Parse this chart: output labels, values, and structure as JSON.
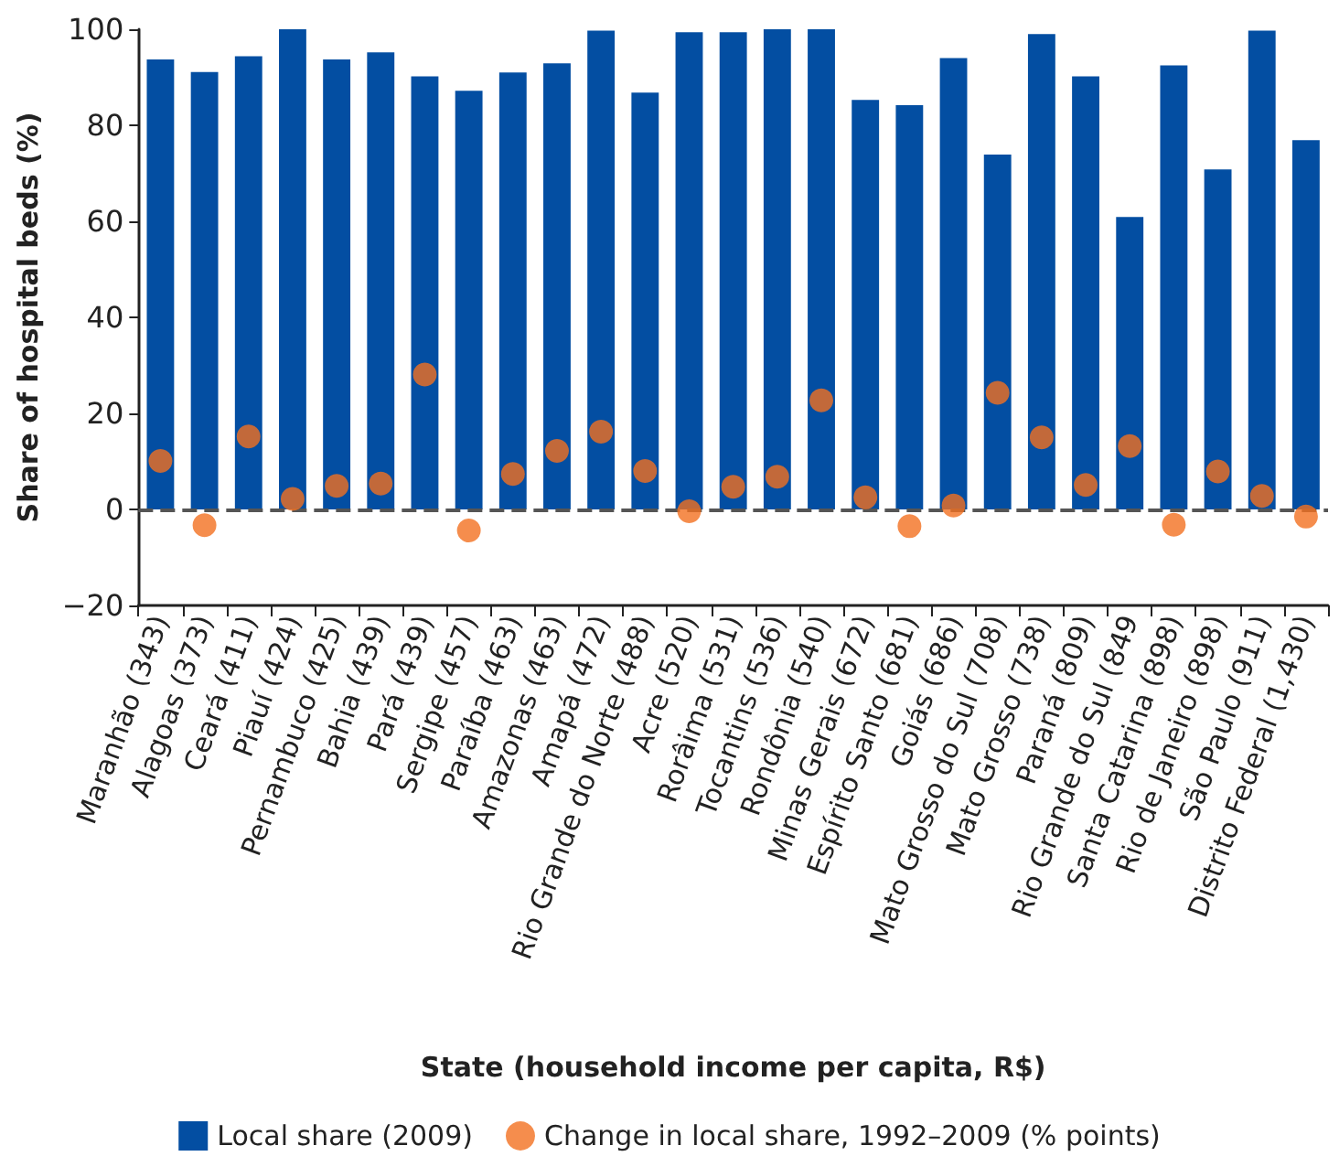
{
  "chart_data": {
    "type": "bar",
    "xlabel": "State (household income per capita, R$)",
    "ylabel": "Share of hospital beds (%)",
    "categories": [
      "Maranhão (343)",
      "Alagoas (373)",
      "Ceará (411)",
      "Piauí (424)",
      "Pernambuco (425)",
      "Bahia (439)",
      "Pará (439)",
      "Sergipe (457)",
      "Paraíba (463)",
      "Amazonas (463)",
      "Amapá (472)",
      "Rio Grande do Norte (488)",
      "Acre (520)",
      "Rorâima (531)",
      "Tocantins (536)",
      "Rondônia (540)",
      "Minas Gerais (672)",
      "Espírito Santo (681)",
      "Goiás (686)",
      "Mato Grosso do Sul (708)",
      "Mato Grosso (738)",
      "Paraná (809)",
      "Rio Grande do Sul (849",
      "Santa Catarina (898)",
      "Rio de Janeiro (898)",
      "São Paulo (911)",
      "Distrito Federal (1,430)"
    ],
    "series": [
      {
        "name": "Local share (2009)",
        "color": "#034ea2",
        "values": [
          93.7,
          91.1,
          94.4,
          100,
          93.7,
          95.2,
          90.2,
          87.2,
          91.0,
          92.9,
          99.7,
          86.8,
          99.4,
          99.4,
          100,
          100,
          85.3,
          84.2,
          94.0,
          73.9,
          99.0,
          90.2,
          60.9,
          92.5,
          70.8,
          99.7,
          76.9
        ]
      },
      {
        "name": "Change in local share, 1992–2009 (% points)",
        "type": "scatter",
        "color": "#f37021",
        "marker": "circle",
        "values": [
          10.1,
          -3.3,
          15.2,
          2.2,
          4.9,
          5.4,
          28.1,
          -4.4,
          7.4,
          12.2,
          16.2,
          8.0,
          -0.4,
          4.7,
          6.8,
          22.7,
          2.5,
          -3.5,
          0.8,
          24.3,
          15.0,
          5.1,
          13.2,
          -3.2,
          7.9,
          2.8,
          -1.5
        ]
      }
    ],
    "ylim": [
      -20,
      100
    ],
    "yticks": [
      -20,
      0,
      20,
      40,
      60,
      80,
      100
    ],
    "grid": false,
    "legend": "bottom",
    "ref_lines": [
      {
        "axis": "y",
        "value": 0,
        "color": "#555555",
        "line_style": "dashed"
      }
    ]
  }
}
